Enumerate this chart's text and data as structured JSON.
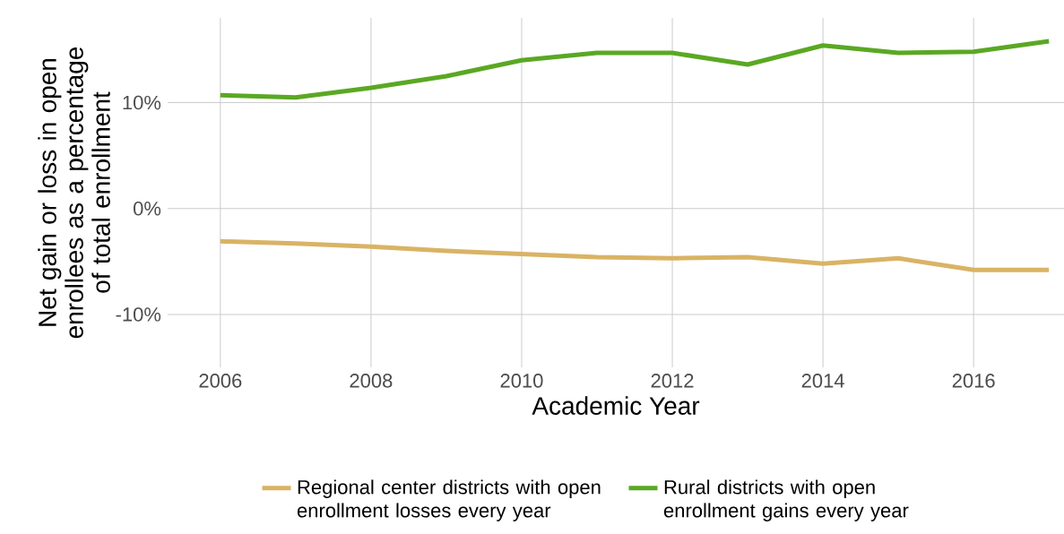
{
  "chart_data": {
    "type": "line",
    "xlabel": "Academic Year",
    "ylabel": "Net gain or loss in open enrollees as a percentage of total enrollment",
    "x": [
      2006,
      2007,
      2008,
      2009,
      2010,
      2011,
      2012,
      2013,
      2014,
      2015,
      2016,
      2017
    ],
    "series": [
      {
        "name": "Regional center districts with open enrollment losses every year",
        "color": "#d9b365",
        "values": [
          -3.1,
          -3.3,
          -3.6,
          -4.0,
          -4.3,
          -4.6,
          -4.7,
          -4.6,
          -5.2,
          -4.7,
          -5.8,
          -5.8
        ]
      },
      {
        "name": "Rural districts with open enrollment gains every year",
        "color": "#5aa823",
        "values": [
          10.7,
          10.5,
          11.4,
          12.5,
          14.0,
          14.7,
          14.7,
          13.6,
          15.4,
          14.7,
          14.8,
          15.8
        ]
      }
    ],
    "xlim": [
      2005.3,
      2017.2
    ],
    "ylim": [
      -15,
      18
    ],
    "xticks": [
      2006,
      2008,
      2010,
      2012,
      2014,
      2016
    ],
    "yticks": [
      {
        "value": -10,
        "label": "-10%"
      },
      {
        "value": 0,
        "label": "0%"
      },
      {
        "value": 10,
        "label": "10%"
      }
    ],
    "grid": true,
    "legend": "bottom"
  }
}
